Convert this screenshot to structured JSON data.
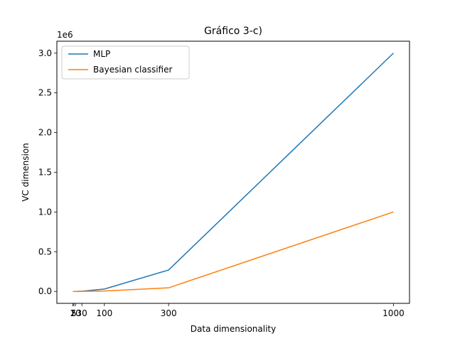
{
  "chart_data": {
    "type": "line",
    "title": "Gráfico 3-c)",
    "xlabel": "Data dimensionality",
    "ylabel": "VC dimension",
    "y_offset_label": "1e6",
    "x": [
      2,
      5,
      10,
      30,
      100,
      300,
      1000
    ],
    "series": [
      {
        "name": "MLP",
        "color": "#1f77b4",
        "values": [
          12,
          75,
          300,
          2700,
          30000,
          270000,
          3000000
        ]
      },
      {
        "name": "Bayesian classifier",
        "color": "#ff7f0e",
        "values": [
          5,
          20,
          65,
          495,
          5150,
          45450,
          1001000
        ]
      }
    ],
    "x_ticks": [
      2,
      5,
      10,
      30,
      100,
      300,
      1000
    ],
    "x_tick_labels": [
      "2",
      "5",
      "10",
      "30",
      "100",
      "300",
      "1000"
    ],
    "y_ticks": [
      0,
      500000,
      1000000,
      1500000,
      2000000,
      2500000,
      3000000
    ],
    "y_tick_labels": [
      "0.0",
      "0.5",
      "1.0",
      "1.5",
      "2.0",
      "2.5",
      "3.0"
    ],
    "xlim": [
      -47.9,
      1049.9
    ],
    "ylim": [
      -150000,
      3150000
    ],
    "grid": false,
    "legend": "top-left"
  }
}
